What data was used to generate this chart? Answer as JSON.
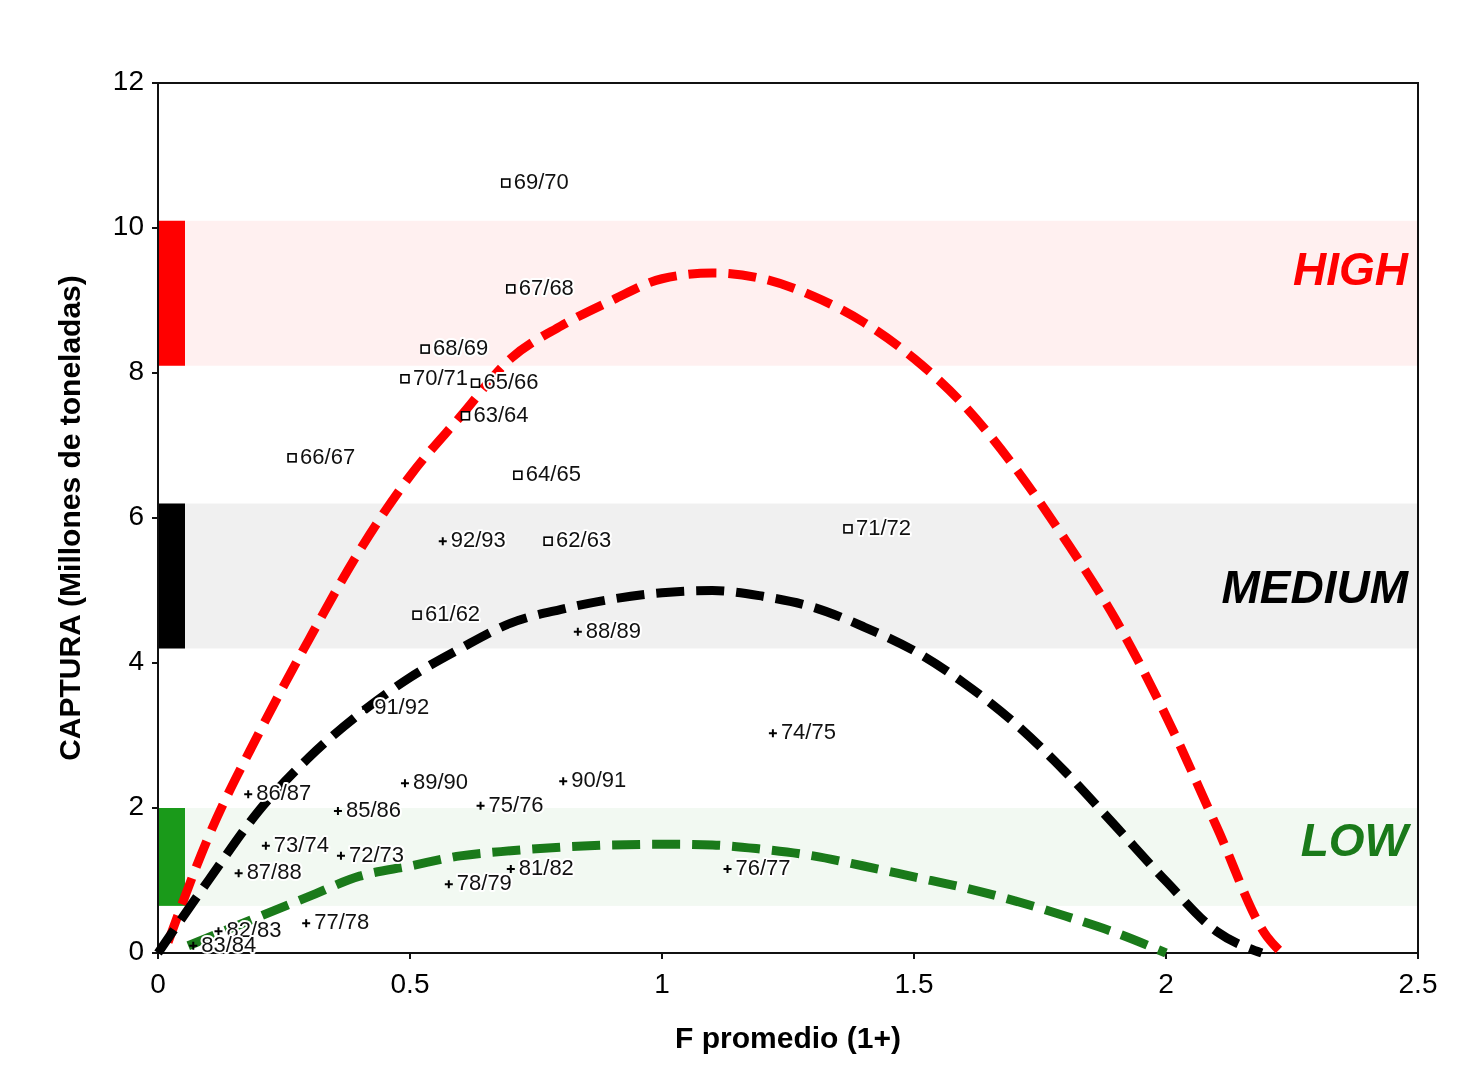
{
  "chart_data": {
    "type": "scatter",
    "xlabel": "F promedio (1+)",
    "ylabel": "CAPTURA (Millones de toneladas)",
    "xlim": [
      0,
      2.5
    ],
    "ylim": [
      0,
      12
    ],
    "xticks": [
      0,
      0.5,
      1,
      1.5,
      2,
      2.5
    ],
    "yticks": [
      0,
      2,
      4,
      6,
      8,
      10,
      12
    ],
    "grid": false,
    "legend": false,
    "bands": [
      {
        "axis": "y",
        "from": 8.1,
        "to": 10.1,
        "color": "#ff0000"
      },
      {
        "axis": "y",
        "from": 4.2,
        "to": 6.2,
        "color": "#000000"
      },
      {
        "axis": "y",
        "from": 0.65,
        "to": 2.0,
        "color": "#1a9a1a"
      }
    ],
    "series": [
      {
        "type": "line",
        "name": "HIGH",
        "color": "#ff0000",
        "line_style": "dashed",
        "x": [
          0.02,
          0.1,
          0.2,
          0.3,
          0.4,
          0.5,
          0.6,
          0.7,
          0.8,
          0.9,
          1.0,
          1.1,
          1.2,
          1.3,
          1.4,
          1.5,
          1.6,
          1.7,
          1.8,
          1.9,
          2.0,
          2.1,
          2.2,
          2.23
        ],
        "values": [
          0.15,
          1.6,
          3.03,
          4.33,
          5.55,
          6.58,
          7.4,
          8.2,
          8.65,
          9.0,
          9.3,
          9.38,
          9.3,
          9.06,
          8.7,
          8.2,
          7.55,
          6.7,
          5.7,
          4.6,
          3.27,
          1.75,
          0.23,
          0
        ]
      },
      {
        "type": "line",
        "name": "MEDIUM",
        "color": "#000000",
        "line_style": "dashed",
        "x": [
          0,
          0.1,
          0.2,
          0.3,
          0.4,
          0.5,
          0.6,
          0.7,
          0.8,
          0.9,
          1.0,
          1.1,
          1.2,
          1.3,
          1.4,
          1.5,
          1.6,
          1.7,
          1.8,
          1.9,
          2.0,
          2.1,
          2.19
        ],
        "values": [
          0,
          1.0,
          1.96,
          2.7,
          3.3,
          3.8,
          4.2,
          4.55,
          4.74,
          4.88,
          4.97,
          5.0,
          4.92,
          4.77,
          4.5,
          4.17,
          3.72,
          3.17,
          2.5,
          1.75,
          0.99,
          0.3,
          0
        ]
      },
      {
        "type": "line",
        "name": "LOW",
        "color": "#1a7a1a",
        "line_style": "dashed",
        "x": [
          0.06,
          0.2,
          0.3,
          0.4,
          0.5,
          0.6,
          0.7,
          0.8,
          0.9,
          1.0,
          1.1,
          1.2,
          1.3,
          1.4,
          1.5,
          1.6,
          1.7,
          1.8,
          1.9,
          2.0
        ],
        "values": [
          0.1,
          0.5,
          0.78,
          1.06,
          1.2,
          1.34,
          1.41,
          1.46,
          1.49,
          1.5,
          1.49,
          1.43,
          1.34,
          1.2,
          1.05,
          0.9,
          0.72,
          0.51,
          0.28,
          0
        ]
      },
      {
        "color": "#000000",
        "marker": "square",
        "x": [
          0.69,
          0.7,
          0.53,
          0.49,
          0.63,
          0.61,
          0.266,
          0.714,
          0.774,
          0.514,
          1.369
        ],
        "values": [
          10.62,
          9.16,
          8.33,
          7.92,
          7.86,
          7.41,
          6.83,
          6.59,
          5.68,
          4.66,
          5.85
        ],
        "value_labels": [
          "69/70",
          "67/68",
          "68/69",
          "70/71",
          "65/66",
          "63/64",
          "66/67",
          "64/65",
          "62/63",
          "61/62",
          "71/72"
        ]
      },
      {
        "color": "#000000",
        "marker": "cross",
        "x": [
          0.565,
          0.833,
          0.413,
          1.22,
          0.179,
          0.357,
          0.49,
          0.64,
          0.804,
          0.214,
          0.363,
          0.16,
          0.577,
          0.7,
          1.13,
          0.294,
          0.12,
          0.07
        ],
        "values": [
          5.68,
          4.43,
          3.37,
          3.03,
          2.19,
          1.96,
          2.34,
          2.03,
          2.37,
          1.48,
          1.34,
          1.1,
          0.95,
          1.16,
          1.16,
          0.41,
          0.3,
          0.1
        ],
        "value_labels": [
          "92/93",
          "88/89",
          "91/92",
          "74/75",
          "86/87",
          "85/86",
          "89/90",
          "75/76",
          "90/91",
          "73/74",
          "72/73",
          "87/88",
          "78/79",
          "81/82",
          "76/77",
          "77/78",
          "82/83",
          "83/84"
        ]
      }
    ]
  }
}
